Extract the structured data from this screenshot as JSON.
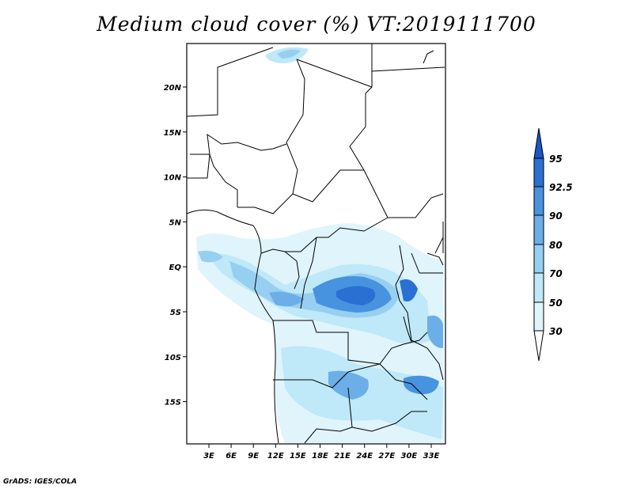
{
  "title": "Medium cloud cover (%) VT:2019111700",
  "credit": "GrADS: IGES/COLA",
  "map": {
    "lat_labels": [
      "20N",
      "15N",
      "10N",
      "5N",
      "EQ",
      "5S",
      "10S",
      "15S"
    ],
    "lon_labels": [
      "3E",
      "6E",
      "9E",
      "12E",
      "15E",
      "18E",
      "21E",
      "24E",
      "27E",
      "30E",
      "33E"
    ],
    "lat_range": [
      -20,
      25
    ],
    "lon_range": [
      0,
      35
    ],
    "background": "#ffffff"
  },
  "colorbar": {
    "levels": [
      "95",
      "92.5",
      "90",
      "80",
      "70",
      "50",
      "30"
    ],
    "colors": [
      "#ffffff",
      "#dff4fb",
      "#bfe8f8",
      "#97cff1",
      "#6baee8",
      "#4793e0",
      "#2a70d3",
      "#1a56c4"
    ]
  }
}
